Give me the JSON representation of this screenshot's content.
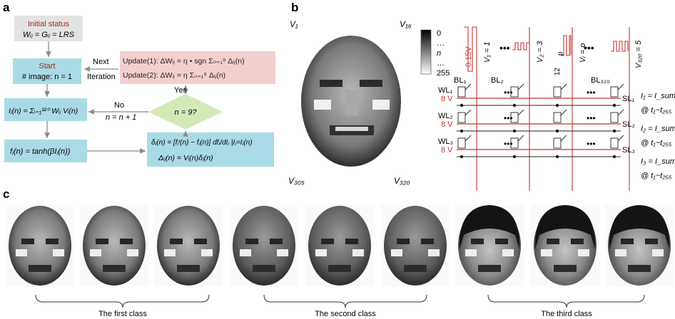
{
  "panel_labels": {
    "a": "a",
    "b": "b",
    "c": "c"
  },
  "flowchart": {
    "init_title": "Initial status",
    "init_eq": "Wᵢⱼ = Gᵢⱼ = LRS",
    "start_title": "Start",
    "start_text": "# image: n = 1",
    "update1": "Update(1): ΔWᵢⱼ = η • sgn Σₙ₌₁⁹ Δᵢⱼ(n)",
    "update2": "Update(2): ΔWᵢⱼ = η Σₙ₌₁⁹ Δᵢⱼ(n)",
    "next": "Next",
    "iteration": "Iteration",
    "yes": "Yes",
    "no": "No",
    "increment": "n = n + 1",
    "decision": "n = 9?",
    "current_eq": "Iⱼ(n) = Σᵢ₌₁³²⁰ Wᵢⱼ Vᵢ(n)",
    "activation_eq": "fⱼ(n) = tanh(βIⱼ(n))",
    "delta_eq1": "δⱼ(n) = [fⱼᵗ(n) − fⱼ(n)] dfⱼ/dIⱼ |Iⱼ=Iⱼ(n)",
    "delta_eq2": "Δᵢⱼ(n) = Vᵢ(n)δⱼ(n)"
  },
  "array": {
    "corner_v1": "V₁",
    "corner_v16": "V₁₆",
    "corner_v305": "V₃₀₅",
    "corner_v320": "V₃₂₀",
    "scale_top": "0",
    "scale_dots": "…",
    "scale_n": "n",
    "scale_bottom": "255",
    "voltage_015": "0.15V",
    "v_labels": [
      "V₁ = 1",
      "V₂ = 3",
      "Vᵢ = p",
      "V₃₂₀ = 5"
    ],
    "pulse_p": "p",
    "pulse_12": "12",
    "bl_labels": [
      "BL₁",
      "BL₂",
      "BL₃₂₀"
    ],
    "wl_labels": [
      "WL₁",
      "WL₂",
      "WL₃"
    ],
    "sl_labels": [
      "SL₁",
      "SL₂",
      "SL₃"
    ],
    "wl_voltage": "8 V",
    "outputs": [
      {
        "current": "I₁ = I_sum",
        "time": "@ t₁~t₂₅₅"
      },
      {
        "current": "I₂ = I_sum",
        "time": "@ t₁~t₂₅₅"
      },
      {
        "current": "I₃ = I_sum",
        "time": "@ t₁~t₂₅₅"
      }
    ],
    "ellipsis": "•••"
  },
  "classes": [
    {
      "label": "The first class"
    },
    {
      "label": "The second class"
    },
    {
      "label": "The third class"
    }
  ],
  "colors": {
    "gray_box": "#e3e3e3",
    "blue_box": "#a9dbe6",
    "pink_box": "#f3d0cf",
    "green_diamond": "#d5e9b8",
    "red": "#c8312f",
    "dark_red": "#a52a2a"
  }
}
